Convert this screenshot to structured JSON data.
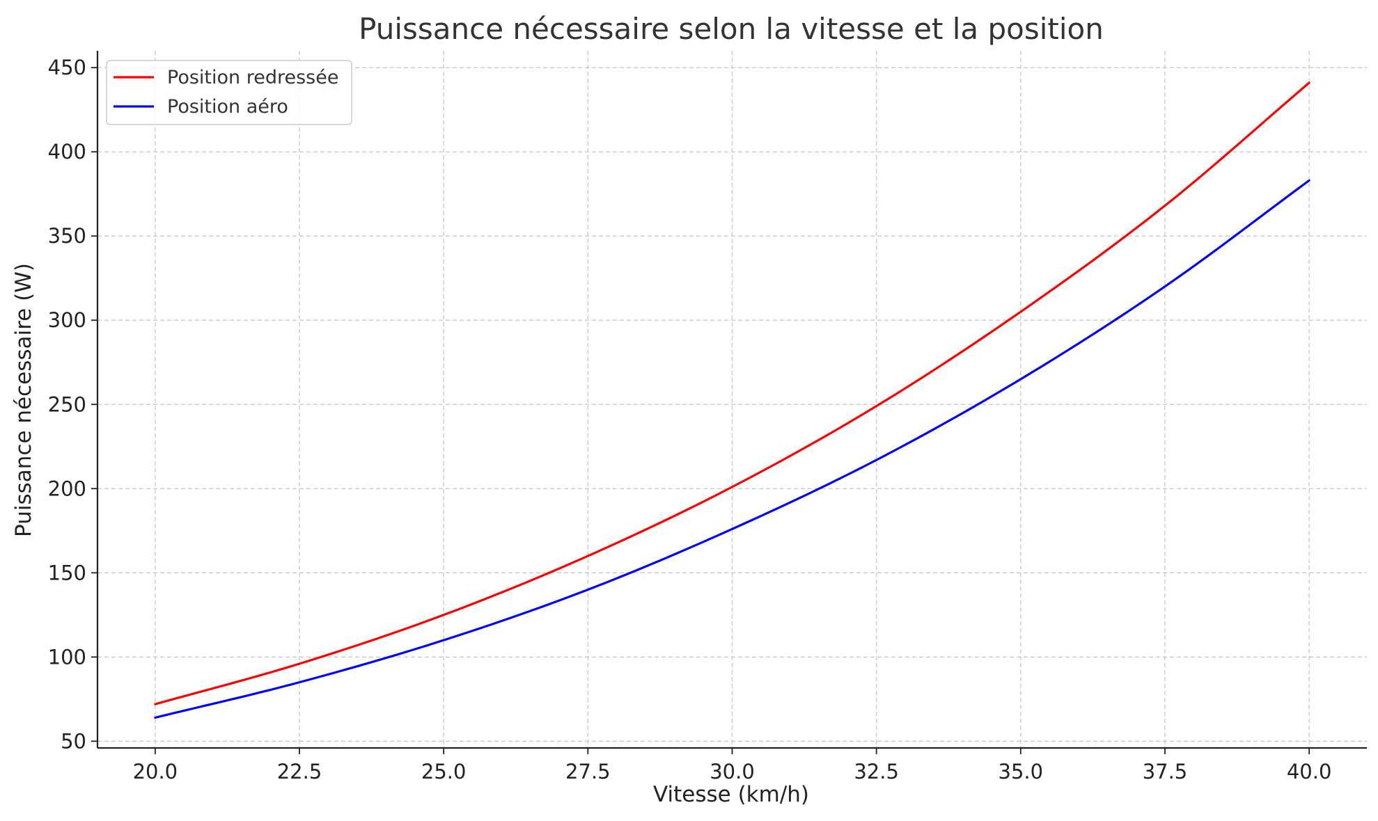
{
  "chart_data": {
    "type": "line",
    "title": "Puissance nécessaire selon la vitesse et la position",
    "xlabel": "Vitesse (km/h)",
    "ylabel": "Puissance nécessaire (W)",
    "xlim": [
      19,
      41
    ],
    "ylim": [
      46,
      460
    ],
    "x_ticks": [
      20.0,
      22.5,
      25.0,
      27.5,
      30.0,
      32.5,
      35.0,
      37.5,
      40.0
    ],
    "x_tick_labels": [
      "20.0",
      "22.5",
      "25.0",
      "27.5",
      "30.0",
      "32.5",
      "35.0",
      "37.5",
      "40.0"
    ],
    "y_ticks": [
      50,
      100,
      150,
      200,
      250,
      300,
      350,
      400,
      450
    ],
    "y_tick_labels": [
      "50",
      "100",
      "150",
      "200",
      "250",
      "300",
      "350",
      "400",
      "450"
    ],
    "grid": true,
    "legend_position": "top-left",
    "x": [
      20,
      22.5,
      25,
      27.5,
      30,
      32.5,
      35,
      37.5,
      40
    ],
    "series": [
      {
        "name": "Position redressée",
        "color": "#ff0000",
        "values": [
          72,
          96,
          125,
          160,
          201,
          249,
          305,
          368,
          441
        ]
      },
      {
        "name": "Position aéro",
        "color": "#0000ff",
        "values": [
          64,
          85,
          110,
          140,
          176,
          217,
          265,
          320,
          383
        ]
      }
    ]
  }
}
